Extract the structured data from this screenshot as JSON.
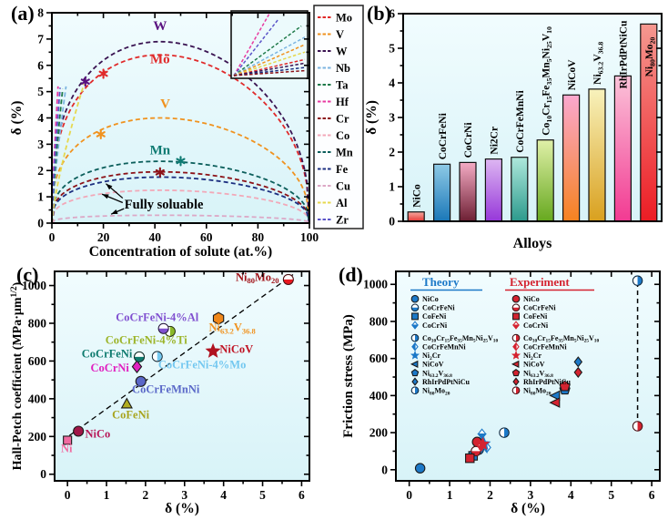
{
  "figure": {
    "background": "#ffffff",
    "plot_bg_top": "#f1fcfe",
    "plot_bg_bottom": "#d8f3f8",
    "axis_color": "#000000"
  },
  "chart_data": [
    {
      "panel": "(a)",
      "type": "line",
      "xlabel": "Concentration of solute (at.%)",
      "ylabel": "δ (%)",
      "xlim": [
        0,
        100
      ],
      "ylim": [
        0,
        8
      ],
      "xticks": [
        0,
        20,
        40,
        60,
        80,
        100
      ],
      "yticks": [
        0,
        1,
        2,
        3,
        4,
        5,
        6,
        7,
        8
      ],
      "series": [
        {
          "name": "Mo",
          "color": "#e02a2a",
          "kind": "full",
          "peak": 6.4
        },
        {
          "name": "V",
          "color": "#f0921e",
          "kind": "full",
          "peak": 4.0
        },
        {
          "name": "W",
          "color": "#3a1452",
          "kind": "full",
          "peak": 6.9
        },
        {
          "name": "Nb",
          "color": "#7cb4e0",
          "kind": "partial",
          "x_end": 5.5,
          "y_end": 5.2
        },
        {
          "name": "Ta",
          "color": "#1f7a4a",
          "kind": "partial",
          "x_end": 4.2,
          "y_end": 5.1
        },
        {
          "name": "Hf",
          "color": "#e83aa0",
          "kind": "partial",
          "x_end": 2.4,
          "y_end": 5.2
        },
        {
          "name": "Cr",
          "color": "#8c1218",
          "kind": "full",
          "peak": 1.95
        },
        {
          "name": "Co",
          "color": "#f2a8b8",
          "kind": "full",
          "peak": 1.25
        },
        {
          "name": "Mn",
          "color": "#0c5f5c",
          "kind": "full",
          "peak": 2.35
        },
        {
          "name": "Fe",
          "color": "#1c2f80",
          "kind": "full",
          "peak": 1.75
        },
        {
          "name": "Cu",
          "color": "#dca8c6",
          "kind": "full",
          "peak": 0.3
        },
        {
          "name": "Al",
          "color": "#e6d84e",
          "kind": "partial",
          "x_end": 12.5,
          "y_end": 5.3
        },
        {
          "name": "Zr",
          "color": "#5b55c8",
          "kind": "partial",
          "x_end": 3.2,
          "y_end": 5.15
        }
      ],
      "curve_labels": [
        {
          "text": "W",
          "x": 42,
          "y": 7.35,
          "color": "#5a1280"
        },
        {
          "text": "Mo",
          "x": 42,
          "y": 6.08,
          "color": "#e02a2a"
        },
        {
          "text": "V",
          "x": 44,
          "y": 4.38,
          "color": "#f0921e"
        },
        {
          "text": "Mn",
          "x": 42,
          "y": 2.62,
          "color": "#0e7a72"
        }
      ],
      "point_markers": [
        {
          "x": 13,
          "y": 5.38,
          "color": "#5a1280"
        },
        {
          "x": 20,
          "y": 5.68,
          "color": "#e02a2a"
        },
        {
          "x": 19,
          "y": 3.38,
          "color": "#f0921e"
        },
        {
          "x": 50,
          "y": 2.36,
          "color": "#0e7a72"
        },
        {
          "x": 42,
          "y": 1.93,
          "color": "#8c1218"
        }
      ],
      "annotation": {
        "text": "Fully soluable",
        "x": 28.2,
        "y": 0.72,
        "arrows": [
          {
            "x1": 27.5,
            "y1": 0.95,
            "x2": 21.0,
            "y2": 1.5
          },
          {
            "x1": 27.5,
            "y1": 0.78,
            "x2": 19.5,
            "y2": 1.1
          },
          {
            "x1": 28.0,
            "y1": 0.55,
            "x2": 23.0,
            "y2": 0.34
          }
        ]
      },
      "inset_lines": [
        {
          "color": "#e83aa0",
          "dx": 0.5,
          "dy": 1.0
        },
        {
          "color": "#5b55c8",
          "dx": 0.62,
          "dy": 0.9
        },
        {
          "color": "#1f7a4a",
          "dx": 0.95,
          "dy": 0.8
        },
        {
          "color": "#7cb4e0",
          "dx": 1.0,
          "dy": 0.62
        },
        {
          "color": "#f0921e",
          "dx": 1.0,
          "dy": 0.5
        },
        {
          "color": "#e6d84e",
          "dx": 1.0,
          "dy": 0.38
        },
        {
          "color": "#e02a2a",
          "dx": 1.0,
          "dy": 0.26
        },
        {
          "color": "#3a1452",
          "dx": 1.0,
          "dy": 0.2
        },
        {
          "color": "#1c2f80",
          "dx": 1.0,
          "dy": 0.13
        },
        {
          "color": "#8c1218",
          "dx": 1.0,
          "dy": 0.08
        }
      ],
      "legend": [
        {
          "label": "Mo",
          "color": "#e02a2a"
        },
        {
          "label": "V",
          "color": "#f0921e"
        },
        {
          "label": "W",
          "color": "#3a1452"
        },
        {
          "label": "Nb",
          "color": "#7cb4e0"
        },
        {
          "label": "Ta",
          "color": "#1f7a4a"
        },
        {
          "label": "Hf",
          "color": "#e83aa0"
        },
        {
          "label": "Cr",
          "color": "#8c1218"
        },
        {
          "label": "Co",
          "color": "#f2a8b8"
        },
        {
          "label": "Mn",
          "color": "#0c5f5c"
        },
        {
          "label": "Fe",
          "color": "#1c2f80"
        },
        {
          "label": "Cu",
          "color": "#dca8c6"
        },
        {
          "label": "Al",
          "color": "#e6d84e"
        },
        {
          "label": "Zr",
          "color": "#5b55c8"
        }
      ]
    },
    {
      "panel": "(b)",
      "type": "bar",
      "xlabel": "Alloys",
      "ylabel": "δ (%)",
      "ylim": [
        0,
        6
      ],
      "yticks": [
        0,
        1,
        2,
        3,
        4,
        5,
        6
      ],
      "bars": [
        {
          "label": "NiCo",
          "value": 0.27,
          "top": "#f6a9a0",
          "bottom": "#e53935",
          "label_pos": "above"
        },
        {
          "label": "CoCrFeNi",
          "value": 1.65,
          "top": "#8ecae6",
          "bottom": "#1a77b8",
          "label_pos": "above"
        },
        {
          "label": "CoCrNi",
          "value": 1.7,
          "top": "#f4abc4",
          "bottom": "#6d1f33",
          "label_pos": "above"
        },
        {
          "label": "Ni2Cr",
          "value": 1.8,
          "top": "#ddb6f2",
          "bottom": "#9637d9",
          "label_pos": "above"
        },
        {
          "label": "CoCrFeMnNi",
          "value": 1.85,
          "top": "#aee8dc",
          "bottom": "#2c9a8c",
          "label_pos": "above"
        },
        {
          "label": "Co|10|Cr|15|Fe|35|Mn|5|Ni|25|V|10",
          "value": 2.35,
          "top": "#e0f0a8",
          "bottom": "#66a81e",
          "label_pos": "above"
        },
        {
          "label": "NiCoV",
          "value": 3.65,
          "top": "#fba8cf",
          "bottom": "#f5821f",
          "label_pos": "above"
        },
        {
          "label": "Ni|63.2|V|36.8",
          "value": 3.82,
          "top": "#f8f2bc",
          "bottom": "#d9a01e",
          "label_pos": "above"
        },
        {
          "label": "RhIrPdPtNiCu",
          "value": 4.2,
          "top": "#fbc3d9",
          "bottom": "#f23a92",
          "label_pos": "overlap"
        },
        {
          "label": "Ni|80|Mo|20",
          "value": 5.7,
          "top": "#f59890",
          "bottom": "#ec1c24",
          "label_pos": "inside"
        }
      ]
    },
    {
      "panel": "(c)",
      "type": "scatter",
      "xlabel": "δ (%)",
      "ylabel": "Hall-Petch coefficient (MPa·μm|1/2|)",
      "xlim": [
        0,
        6
      ],
      "ylim": [
        0,
        1000
      ],
      "xticks": [
        0,
        1,
        2,
        3,
        4,
        5,
        6
      ],
      "yticks": [
        0,
        200,
        400,
        600,
        800,
        1000
      ],
      "trend": {
        "x1": 0.05,
        "y1": 205,
        "x2": 5.78,
        "y2": 1058
      },
      "points": [
        {
          "name": "Ni",
          "x": 0.0,
          "y": 180,
          "marker": "square",
          "r": 5,
          "color": "#f06aa0",
          "label": "Ni",
          "lx": -0.02,
          "ly": 118,
          "anchor": "middle",
          "label_color": "#f06aa0"
        },
        {
          "name": "NiCo",
          "x": 0.28,
          "y": 228,
          "marker": "circle",
          "r": 5.5,
          "color": "#a01648",
          "label": "NiCo",
          "lx": 0.45,
          "ly": 195,
          "anchor": "start",
          "label_color": "#b81858"
        },
        {
          "name": "CoFeNi",
          "x": 1.52,
          "y": 372,
          "marker": "triangle",
          "r": 6,
          "color": "#b0ac20",
          "label": "CoFeNi",
          "lx": 1.62,
          "ly": 295,
          "anchor": "middle",
          "label_color": "#a8a41e"
        },
        {
          "name": "CoCrFeMnNi",
          "x": 1.88,
          "y": 492,
          "marker": "circle",
          "r": 5.5,
          "color": "#5a68c8",
          "label": "CoCrFeMnNi",
          "lx": 2.52,
          "ly": 430,
          "anchor": "middle",
          "label_color": "#5a68c8"
        },
        {
          "name": "CoCrNi",
          "x": 1.78,
          "y": 570,
          "marker": "diamond",
          "r": 6.5,
          "color": "#e020c0",
          "label": "CoCrNi",
          "lx": 1.58,
          "ly": 545,
          "anchor": "end",
          "label_color": "#e020c0"
        },
        {
          "name": "CoCrFeNi",
          "x": 1.84,
          "y": 622,
          "marker": "circleHalfH",
          "r": 5.5,
          "color": "#0e7a6e",
          "label": "CoCrFeNi",
          "lx": 1.66,
          "ly": 618,
          "anchor": "end",
          "label_color": "#0e7a6e"
        },
        {
          "name": "CoCrFeNi-4%Mo",
          "x": 2.3,
          "y": 624,
          "marker": "circleHalfV",
          "r": 5.5,
          "color": "#74c8f0",
          "label": "CoCrFeNi-4%Mo",
          "lx": 3.45,
          "ly": 560,
          "anchor": "middle",
          "label_color": "#74c8f0"
        },
        {
          "name": "CoCrFeNi-4%Ti",
          "x": 2.63,
          "y": 757,
          "marker": "circleHalfV",
          "r": 5.5,
          "color": "#8ab828",
          "label": "CoCrFeNi-4%Ti",
          "lx": 2.02,
          "ly": 692,
          "anchor": "middle",
          "label_color": "#9cb428"
        },
        {
          "name": "CoCrFeNi-4%Al",
          "x": 2.46,
          "y": 772,
          "marker": "circleHalfH",
          "r": 5.5,
          "color": "#8050d0",
          "label": "CoCrFeNi-4%Al",
          "lx": 2.3,
          "ly": 812,
          "anchor": "middle",
          "label_color": "#8050d0"
        },
        {
          "name": "Ni63.2V36.8",
          "x": 3.87,
          "y": 826,
          "marker": "hexagon",
          "r": 6.5,
          "color": "#f0871a",
          "label": "Ni|63.2|V|36.8",
          "lx": 4.22,
          "ly": 758,
          "anchor": "middle",
          "label_color": "#f0921e"
        },
        {
          "name": "NiCoV",
          "x": 3.73,
          "y": 652,
          "marker": "star",
          "r": 7.5,
          "color": "#b01220",
          "label": "NiCoV",
          "lx": 3.9,
          "ly": 642,
          "anchor": "start",
          "label_color": "#c01425"
        },
        {
          "name": "Ni80Mo20",
          "x": 5.66,
          "y": 1032,
          "marker": "circleHalfH",
          "r": 5.5,
          "color": "#e81820",
          "label": "Ni|80|Mo|20",
          "lx": 5.42,
          "ly": 1025,
          "anchor": "end",
          "label_color": "#a01218"
        }
      ]
    },
    {
      "panel": "(d)",
      "type": "scatter",
      "xlabel": "δ (%)",
      "ylabel": "Friction stress (MPa)",
      "xlim": [
        0,
        6
      ],
      "ylim": [
        0,
        1000
      ],
      "xticks": [
        0,
        1,
        2,
        3,
        4,
        5,
        6
      ],
      "yticks": [
        0,
        200,
        400,
        600,
        800,
        1000
      ],
      "theory_color": "#1c79c8",
      "experiment_color": "#d42330",
      "legend_titles": {
        "theory": "Theory",
        "experiment": "Experiment"
      },
      "legend_items": [
        {
          "label": "NiCo",
          "marker": "circle"
        },
        {
          "label": "CoCrFeNi",
          "marker": "circleHalfH"
        },
        {
          "label": "CoFeNi",
          "marker": "square"
        },
        {
          "label": "CoCrNi",
          "marker": "diamondHalfH"
        },
        {
          "label": "Co|10|Cr|15|Fe|35|Mn|5|Ni|25|V|10",
          "marker": "circleHalfV"
        },
        {
          "label": "CoCrFeMnNi",
          "marker": "diamondHalfV"
        },
        {
          "label": "Ni|2|Cr",
          "marker": "star"
        },
        {
          "label": "NiCoV",
          "marker": "triLeft"
        },
        {
          "label": "Ni|63.2|V|36.8",
          "marker": "pentagon"
        },
        {
          "label": "RhIrPdPtNiCu",
          "marker": "diamond"
        },
        {
          "label": "Ni|80|Mo|20",
          "marker": "circleHalfV"
        }
      ],
      "theory_points": [
        {
          "marker": "circle",
          "x": 0.27,
          "y": 8
        },
        {
          "marker": "circleHalfH",
          "x": 1.72,
          "y": 108
        },
        {
          "marker": "square",
          "x": 1.58,
          "y": 75
        },
        {
          "marker": "diamondHalfH",
          "x": 1.8,
          "y": 193
        },
        {
          "marker": "circleHalfV",
          "x": 2.35,
          "y": 200
        },
        {
          "marker": "diamondHalfV",
          "x": 1.92,
          "y": 120
        },
        {
          "marker": "star",
          "x": 1.85,
          "y": 140
        },
        {
          "marker": "triLeft",
          "x": 3.62,
          "y": 400
        },
        {
          "marker": "pentagon",
          "x": 3.85,
          "y": 432
        },
        {
          "marker": "diamond",
          "x": 4.18,
          "y": 582
        },
        {
          "marker": "circleHalfV",
          "x": 5.65,
          "y": 1020
        }
      ],
      "experiment_points": [
        {
          "marker": "circle",
          "x": 1.68,
          "y": 150
        },
        {
          "marker": "circleHalfH",
          "x": 1.65,
          "y": 100
        },
        {
          "marker": "square",
          "x": 1.5,
          "y": 62
        },
        {
          "marker": "diamondHalfH",
          "x": 1.78,
          "y": 128
        },
        {
          "marker": "star",
          "x": 1.82,
          "y": 138
        },
        {
          "marker": "triLeft",
          "x": 3.62,
          "y": 362
        },
        {
          "marker": "pentagon",
          "x": 3.85,
          "y": 450
        },
        {
          "marker": "diamond",
          "x": 4.18,
          "y": 525
        },
        {
          "marker": "circleHalfV",
          "x": 5.65,
          "y": 235
        }
      ],
      "connector": {
        "x": 5.65,
        "y1": 235,
        "y2": 1020
      }
    }
  ]
}
